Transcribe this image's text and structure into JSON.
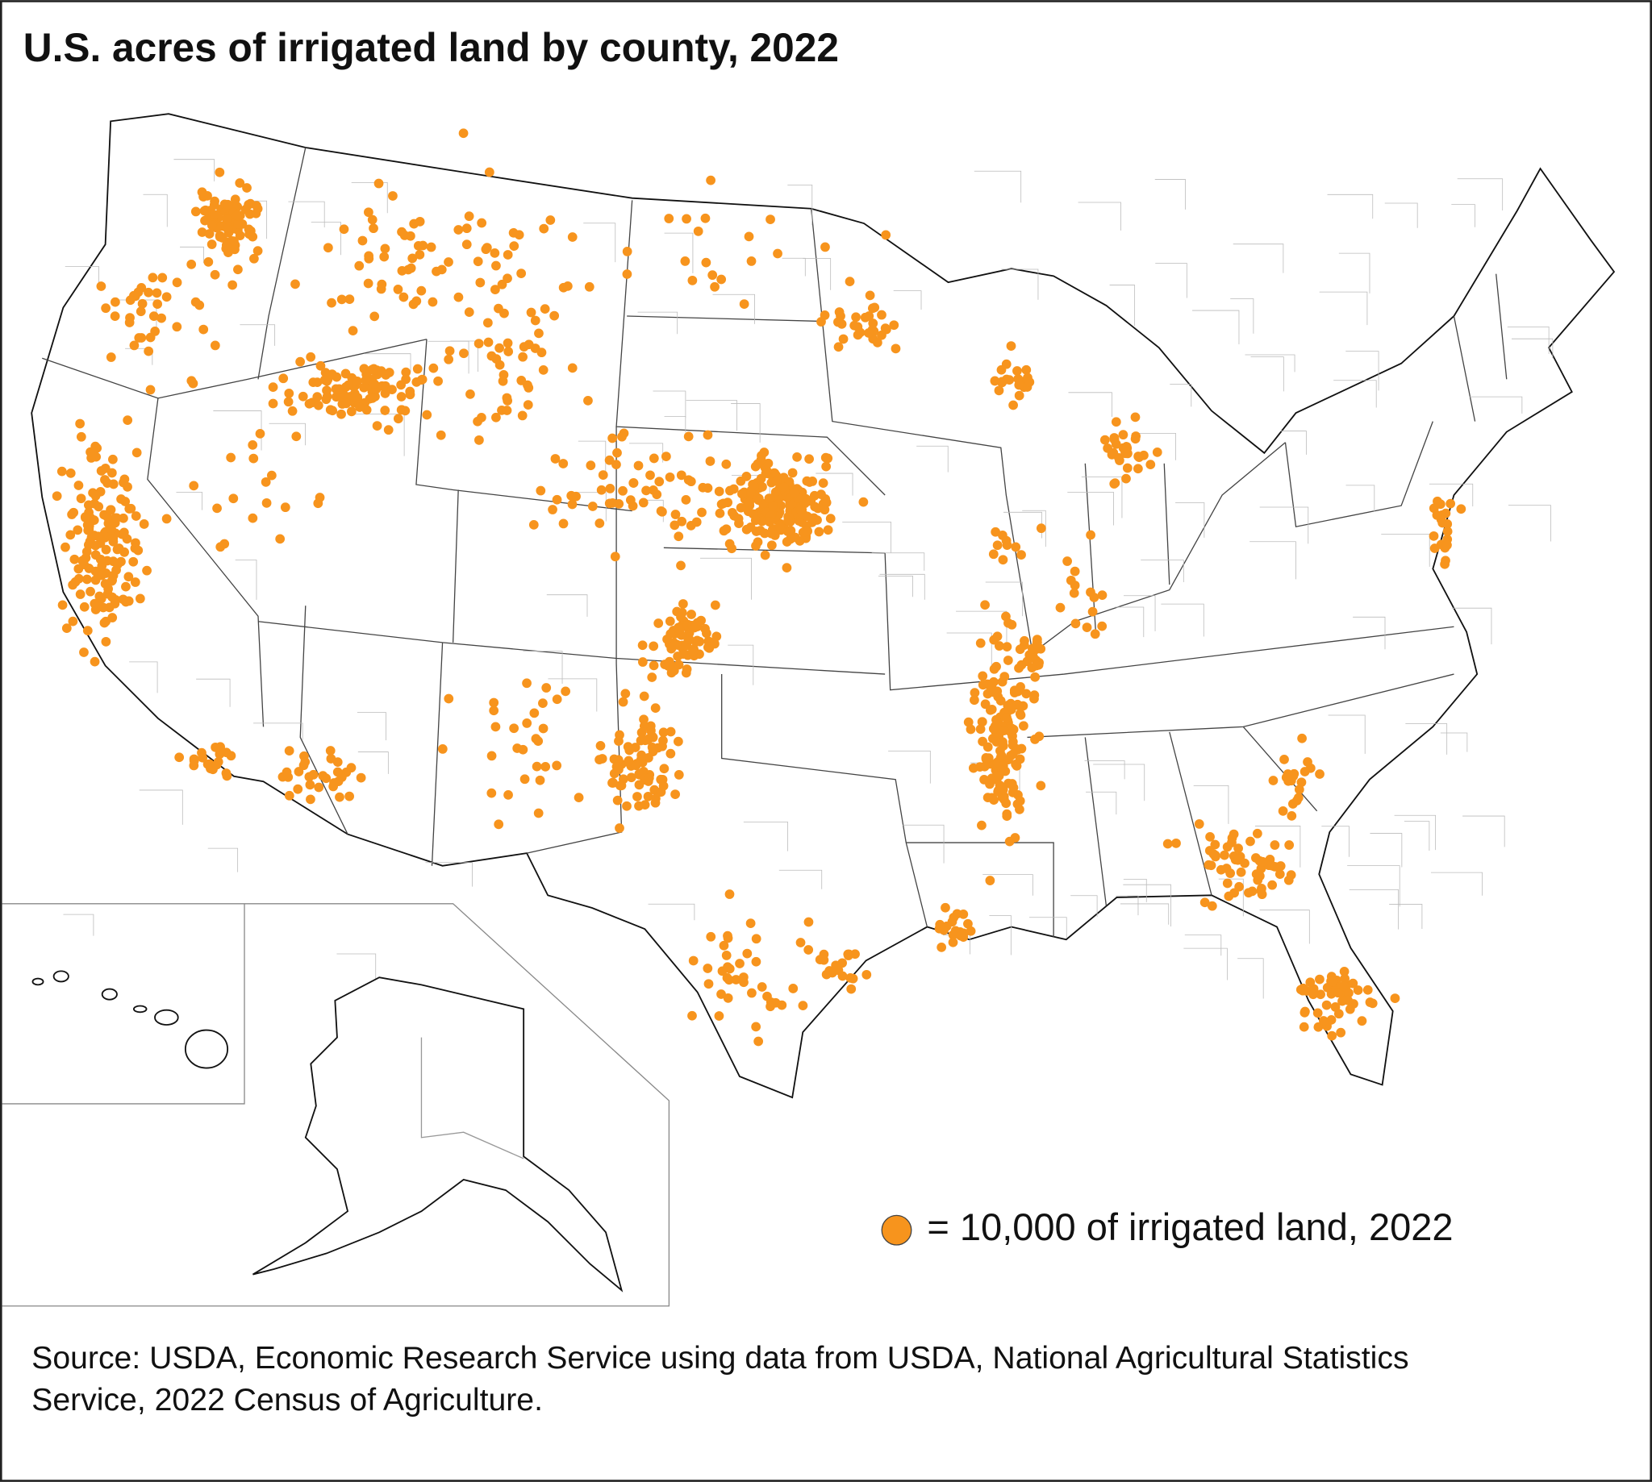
{
  "title": "U.S. acres of irrigated land by county, 2022",
  "legend": {
    "label": "= 10,000 of irrigated land, 2022"
  },
  "source": "Source: USDA, Economic Research Service using data from USDA, National Agricultural Statistics Service, 2022 Census of Agriculture."
}
